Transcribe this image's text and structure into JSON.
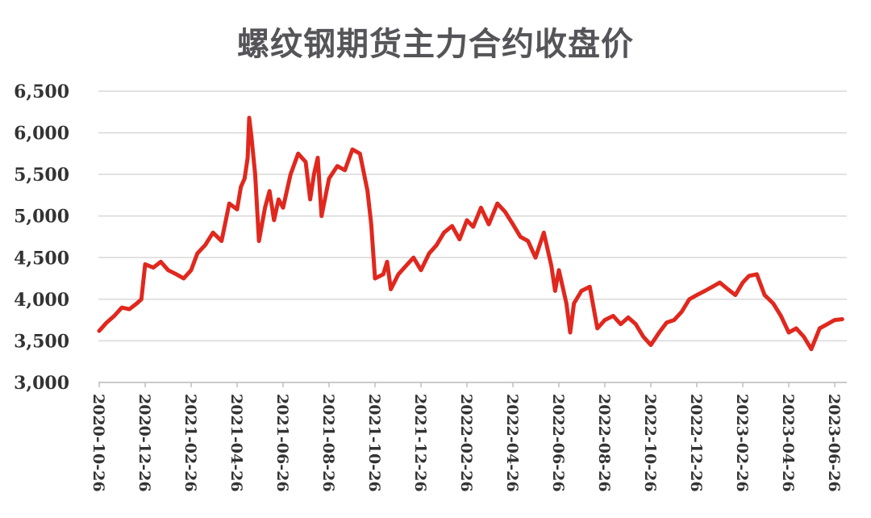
{
  "chart_data": {
    "type": "line",
    "title": "螺纹钢期货主力合约收盘价",
    "xlabel": "",
    "ylabel": "",
    "ylim": [
      3000,
      6500
    ],
    "yticks": [
      3000,
      3500,
      4000,
      4500,
      5000,
      5500,
      6000,
      6500
    ],
    "ytick_labels": [
      "3,000",
      "3,500",
      "4,000",
      "4,500",
      "5,000",
      "5,500",
      "6,000",
      "6,500"
    ],
    "xtick_labels": [
      "2020-10-26",
      "2020-12-26",
      "2021-02-26",
      "2021-04-26",
      "2021-06-26",
      "2021-08-26",
      "2021-10-26",
      "2021-12-26",
      "2022-02-26",
      "2022-04-26",
      "2022-06-26",
      "2022-08-26",
      "2022-10-26",
      "2022-12-26",
      "2023-02-26",
      "2023-04-26",
      "2023-06-26"
    ],
    "grid": true,
    "legend": "none",
    "series": [
      {
        "color": "#e0281e",
        "x": [
          "2020-10-26",
          "2020-11-05",
          "2020-11-15",
          "2020-11-25",
          "2020-12-05",
          "2020-12-15",
          "2020-12-21",
          "2020-12-26",
          "2021-01-06",
          "2021-01-16",
          "2021-01-26",
          "2021-02-06",
          "2021-02-16",
          "2021-02-26",
          "2021-03-06",
          "2021-03-16",
          "2021-03-26",
          "2021-04-06",
          "2021-04-16",
          "2021-04-26",
          "2021-05-01",
          "2021-05-06",
          "2021-05-10",
          "2021-05-12",
          "2021-05-15",
          "2021-05-20",
          "2021-05-25",
          "2021-06-02",
          "2021-06-08",
          "2021-06-14",
          "2021-06-20",
          "2021-06-26",
          "2021-07-06",
          "2021-07-16",
          "2021-07-26",
          "2021-08-01",
          "2021-08-06",
          "2021-08-11",
          "2021-08-16",
          "2021-08-26",
          "2021-09-06",
          "2021-09-16",
          "2021-09-26",
          "2021-10-06",
          "2021-10-16",
          "2021-10-21",
          "2021-10-26",
          "2021-11-06",
          "2021-11-11",
          "2021-11-16",
          "2021-11-26",
          "2021-12-06",
          "2021-12-16",
          "2021-12-26",
          "2022-01-06",
          "2022-01-16",
          "2022-01-26",
          "2022-02-06",
          "2022-02-16",
          "2022-02-26",
          "2022-03-06",
          "2022-03-16",
          "2022-03-26",
          "2022-04-06",
          "2022-04-16",
          "2022-04-26",
          "2022-05-06",
          "2022-05-16",
          "2022-05-26",
          "2022-06-06",
          "2022-06-16",
          "2022-06-21",
          "2022-06-26",
          "2022-07-06",
          "2022-07-11",
          "2022-07-16",
          "2022-07-26",
          "2022-08-06",
          "2022-08-16",
          "2022-08-26",
          "2022-09-06",
          "2022-09-16",
          "2022-09-26",
          "2022-10-06",
          "2022-10-16",
          "2022-10-26",
          "2022-11-06",
          "2022-11-16",
          "2022-11-26",
          "2022-12-06",
          "2022-12-16",
          "2022-12-26",
          "2023-01-06",
          "2023-01-16",
          "2023-01-26",
          "2023-02-06",
          "2023-02-16",
          "2023-02-26",
          "2023-03-06",
          "2023-03-16",
          "2023-03-26",
          "2023-04-06",
          "2023-04-16",
          "2023-04-26",
          "2023-05-06",
          "2023-05-16",
          "2023-05-26",
          "2023-06-06",
          "2023-06-16",
          "2023-06-26",
          "2023-07-06"
        ],
        "values": [
          3620,
          3720,
          3800,
          3900,
          3880,
          3950,
          4000,
          4420,
          4380,
          4450,
          4350,
          4300,
          4250,
          4350,
          4550,
          4650,
          4800,
          4700,
          5150,
          5080,
          5350,
          5450,
          5700,
          6180,
          5950,
          5500,
          4700,
          5100,
          5300,
          4950,
          5200,
          5100,
          5500,
          5750,
          5650,
          5200,
          5500,
          5700,
          5000,
          5450,
          5600,
          5550,
          5800,
          5750,
          5300,
          4900,
          4250,
          4300,
          4450,
          4120,
          4300,
          4400,
          4500,
          4350,
          4550,
          4650,
          4800,
          4880,
          4720,
          4950,
          4870,
          5100,
          4900,
          5150,
          5050,
          4900,
          4750,
          4700,
          4500,
          4800,
          4400,
          4100,
          4350,
          3950,
          3600,
          3950,
          4100,
          4150,
          3650,
          3750,
          3800,
          3700,
          3780,
          3700,
          3550,
          3450,
          3600,
          3720,
          3750,
          3850,
          4000,
          4050,
          4100,
          4150,
          4200,
          4120,
          4050,
          4200,
          4280,
          4300,
          4050,
          3950,
          3800,
          3600,
          3650,
          3550,
          3400,
          3650,
          3700,
          3750,
          3760
        ]
      }
    ]
  }
}
